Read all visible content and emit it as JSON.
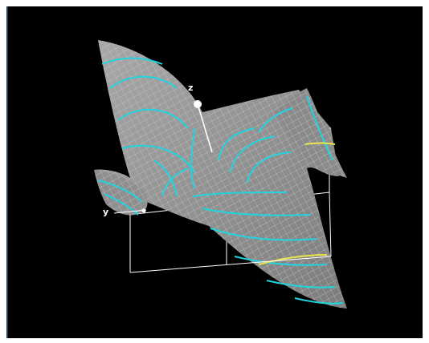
{
  "viewer": {
    "axis_z_label": "z",
    "axis_y_label": "y"
  },
  "colors": {
    "background": "#000000",
    "surface": "#9a9a9a",
    "mesh": "#cfcfcf",
    "contour": "#22d3e0",
    "contour_highlight": "#e8e84a",
    "box": "#ffffff",
    "frame_border": "#1f3f66"
  }
}
